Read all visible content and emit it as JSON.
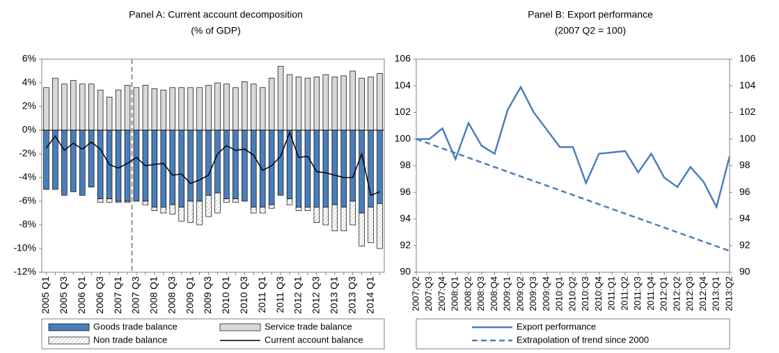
{
  "chart_data": [
    {
      "type": "bar",
      "title": "Panel A: Current account decomposition",
      "subtitle": "(% of GDP)",
      "categories": [
        "2005 Q1",
        null,
        "2005 Q3",
        null,
        "2006 Q1",
        null,
        "2006 Q3",
        null,
        "2007 Q1",
        null,
        "2007 Q3",
        null,
        "2008 Q1",
        null,
        "2008 Q3",
        null,
        "2009 Q1",
        null,
        "2009 Q3",
        null,
        "2010 Q1",
        null,
        "2010 Q3",
        null,
        "2011 Q1",
        null,
        "2011 Q3",
        null,
        "2012 Q1",
        null,
        "2012 Q3",
        null,
        "2013 Q1",
        null,
        "2013 Q3",
        null,
        "2014 Q1",
        null
      ],
      "series": [
        {
          "name": "Goods trade balance",
          "color": "#4a7ebb",
          "values": [
            -5.0,
            -5.0,
            -5.5,
            -5.2,
            -5.5,
            -4.8,
            -5.8,
            -5.8,
            -6.0,
            -6.0,
            -6.0,
            -6.0,
            -6.5,
            -6.5,
            -6.3,
            -6.5,
            -6.0,
            -6.0,
            -5.5,
            -5.3,
            -5.8,
            -5.8,
            -6.0,
            -6.5,
            -6.5,
            -6.3,
            -5.5,
            -5.8,
            -6.5,
            -6.5,
            -6.5,
            -6.5,
            -6.3,
            -6.5,
            -6.0,
            -7.0,
            -6.5,
            -6.2
          ]
        },
        {
          "name": "Service trade balance",
          "color": "#d9d9d9",
          "values": [
            3.6,
            4.4,
            3.9,
            4.2,
            3.9,
            3.9,
            3.4,
            2.8,
            3.4,
            3.8,
            3.6,
            3.8,
            3.5,
            3.4,
            3.6,
            3.6,
            3.6,
            3.6,
            3.8,
            4.0,
            3.9,
            3.6,
            4.1,
            3.9,
            3.6,
            4.4,
            5.4,
            4.7,
            4.5,
            4.4,
            4.5,
            4.7,
            4.5,
            4.6,
            5.0,
            4.4,
            4.5,
            4.8
          ]
        },
        {
          "name": "Non trade balance",
          "color": "#ffffff",
          "hatch": true,
          "values": [
            0,
            0,
            0,
            0,
            0,
            0,
            -0.3,
            -0.3,
            -0.1,
            -0.1,
            0,
            -0.3,
            -0.3,
            -0.5,
            -0.8,
            -1.2,
            -1.8,
            -2.0,
            -1.8,
            -1.7,
            -0.3,
            -0.3,
            0,
            -0.5,
            -0.5,
            -0.3,
            0,
            -0.5,
            -0.3,
            -0.3,
            -1.3,
            -1.5,
            -2.2,
            -2.0,
            -2.0,
            -2.8,
            -3.0,
            -3.8
          ]
        },
        {
          "name": "Current account balance",
          "type": "line",
          "color": "#000000",
          "values": [
            -1.5,
            -0.5,
            -1.7,
            -1.1,
            -1.6,
            -1.0,
            -1.6,
            -2.9,
            -3.2,
            -2.8,
            -2.3,
            -3.0,
            -2.9,
            -2.8,
            -3.8,
            -3.7,
            -4.5,
            -4.2,
            -3.8,
            -2.0,
            -1.3,
            -1.7,
            -1.6,
            -2.1,
            -3.4,
            -3.0,
            -2.2,
            -0.2,
            -2.3,
            -2.2,
            -3.5,
            -3.6,
            -3.8,
            -4.0,
            -4.0,
            -2.0,
            -5.5,
            -5.2
          ]
        }
      ],
      "ylim": [
        -12,
        6
      ],
      "yticks": [
        {
          "value": -12,
          "label": "-12%"
        },
        {
          "value": -10,
          "label": "-10%"
        },
        {
          "value": -8,
          "label": "-8%"
        },
        {
          "value": -6,
          "label": "-6%"
        },
        {
          "value": -4,
          "label": "-4%"
        },
        {
          "value": -2,
          "label": "-2%"
        },
        {
          "value": 0,
          "label": "0%"
        },
        {
          "value": 2,
          "label": "2%"
        },
        {
          "value": 4,
          "label": "4%"
        },
        {
          "value": 6,
          "label": "6%"
        }
      ]
    },
    {
      "type": "line",
      "title": "Panel B: Export performance",
      "subtitle": "(2007 Q2 = 100)",
      "categories": [
        "2007:Q2",
        "2007:Q3",
        "2007:Q4",
        "2008:Q1",
        "2008:Q2",
        "2008:Q3",
        "2008:Q4",
        "2009:Q1",
        "2009:Q2",
        "2009:Q3",
        "2009:Q4",
        "2010:Q1",
        "2010:Q2",
        "2010:Q3",
        "2010:Q4",
        "2011:Q1",
        "2011:Q2",
        "2011:Q3",
        "2011:Q4",
        "2012:Q1",
        "2012:Q2",
        "2012:Q3",
        "2012:Q4",
        "2013:Q1",
        "2013:Q2"
      ],
      "series": [
        {
          "name": "Export performance",
          "color": "#4a7ebb",
          "values": [
            100,
            100,
            100.8,
            98.5,
            101.2,
            99.5,
            98.9,
            102.2,
            103.9,
            102,
            100.7,
            99.4,
            99.4,
            96.7,
            98.9,
            99.0,
            99.1,
            97.5,
            98.9,
            97.1,
            96.4,
            97.9,
            96.8,
            94.9,
            98.7
          ]
        },
        {
          "name": "Extrapolation of trend since 2000",
          "color": "#4a7ebb",
          "dash": true,
          "values": [
            100,
            99.65,
            99.3,
            98.95,
            98.6,
            98.25,
            97.9,
            97.55,
            97.2,
            96.85,
            96.5,
            96.15,
            95.8,
            95.45,
            95.1,
            94.75,
            94.4,
            94.05,
            93.7,
            93.35,
            93.0,
            92.65,
            92.3,
            91.95,
            91.6
          ]
        }
      ],
      "ylim": [
        90,
        106
      ],
      "yticks": [
        90,
        92,
        94,
        96,
        98,
        100,
        102,
        104,
        106
      ],
      "y2lim": [
        90,
        106
      ],
      "y2ticks": [
        90,
        92,
        94,
        96,
        98,
        100,
        102,
        104,
        106
      ]
    }
  ]
}
